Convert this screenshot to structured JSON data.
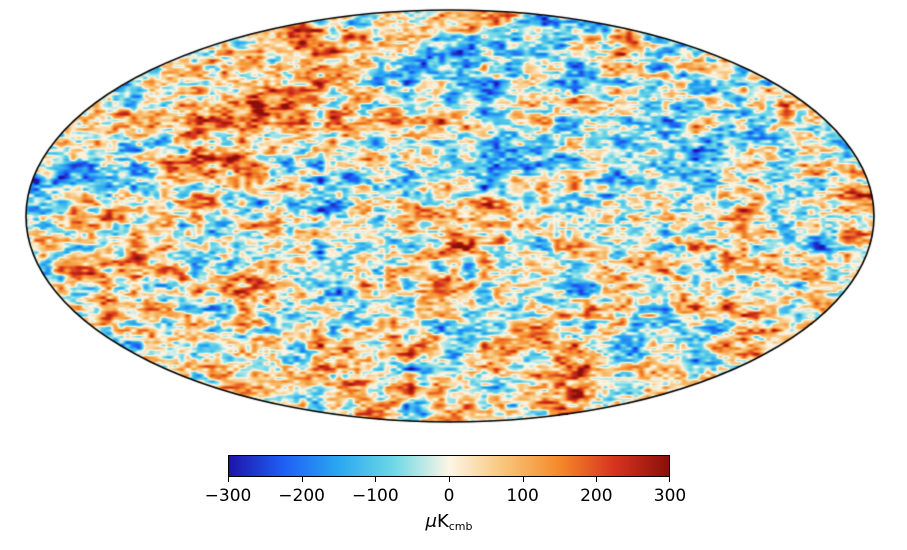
{
  "map": {
    "projection": "mollweide",
    "colormap": [
      "#1e14a8",
      "#1f5ff5",
      "#2aa8f0",
      "#6fd8e6",
      "#fdf6e6",
      "#f8c57a",
      "#f58a2a",
      "#d7341f",
      "#8b0f0a"
    ]
  },
  "colorbar": {
    "min": -300,
    "max": 300,
    "ticks": [
      {
        "value": -300,
        "label": "−300"
      },
      {
        "value": -200,
        "label": "−200"
      },
      {
        "value": -100,
        "label": "−100"
      },
      {
        "value": 0,
        "label": "0"
      },
      {
        "value": 100,
        "label": "100"
      },
      {
        "value": 200,
        "label": "200"
      },
      {
        "value": 300,
        "label": "300"
      }
    ],
    "unit": {
      "prefix": "μ",
      "base": "K",
      "subscript": "cmb"
    }
  }
}
